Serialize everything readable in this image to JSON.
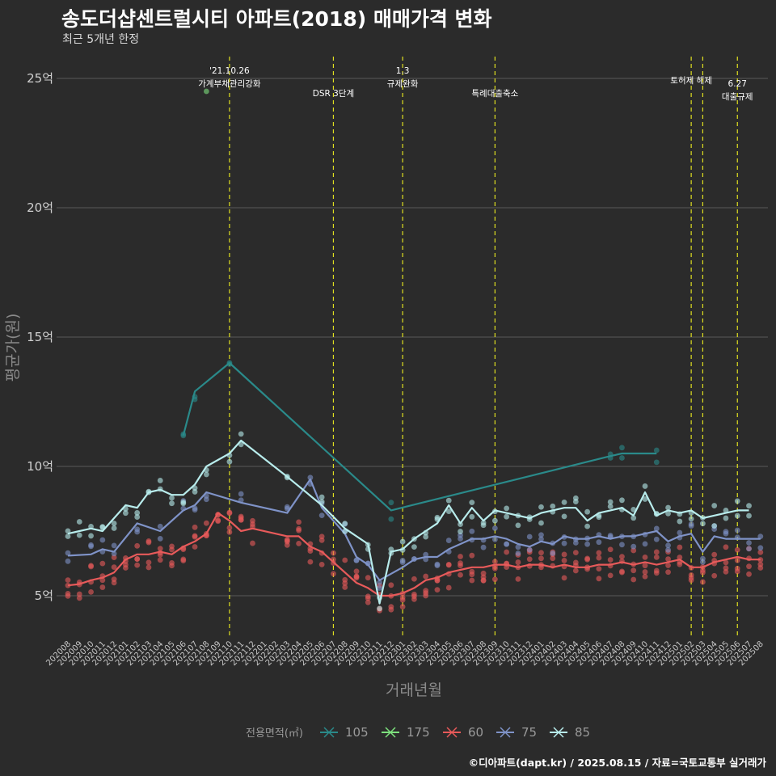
{
  "chart_data": {
    "type": "line",
    "title": "송도더샵센트럴시티 아파트(2018) 매매가격 변화",
    "subtitle": "최근 5개년 한정",
    "xlabel": "거래년월",
    "ylabel": "평균가(원)",
    "ylim": [
      3,
      26
    ],
    "y_ticks": [
      5,
      10,
      15,
      20,
      25
    ],
    "y_tick_labels": [
      "5억",
      "10억",
      "15억",
      "20억",
      "25억"
    ],
    "grid": true,
    "x_categories": [
      "202008",
      "202009",
      "202010",
      "202011",
      "202012",
      "202101",
      "202102",
      "202103",
      "202104",
      "202105",
      "202106",
      "202107",
      "202108",
      "202109",
      "202110",
      "202111",
      "202112",
      "202201",
      "202202",
      "202203",
      "202204",
      "202205",
      "202206",
      "202207",
      "202208",
      "202209",
      "202210",
      "202211",
      "202212",
      "202301",
      "202302",
      "202303",
      "202304",
      "202305",
      "202306",
      "202307",
      "202308",
      "202309",
      "202310",
      "202311",
      "202312",
      "202401",
      "202402",
      "202403",
      "202404",
      "202405",
      "202406",
      "202407",
      "202408",
      "202409",
      "202410",
      "202411",
      "202412",
      "202501",
      "202502",
      "202503",
      "202504",
      "202505",
      "202506",
      "202507",
      "202508"
    ],
    "events": [
      {
        "x": "202110",
        "label": "'21.10.26\n가계부채관리강화"
      },
      {
        "x": "202207",
        "label": "DSR 3단계"
      },
      {
        "x": "202301",
        "label": "1.3\n규제완화"
      },
      {
        "x": "202309",
        "label": "특례대출축소"
      },
      {
        "x": "202502",
        "label": "토허제 해제"
      },
      {
        "x": "202503",
        "label": ""
      },
      {
        "x": "202506",
        "label": "6.27\n대출규제"
      }
    ],
    "legend": {
      "title": "전용면적(㎡)",
      "position": "bottom"
    },
    "series": [
      {
        "name": "105",
        "color": "#2a8a8a",
        "points": [
          [
            "202106",
            11.2
          ],
          [
            "202107",
            12.9
          ],
          [
            "202110",
            14.0
          ],
          [
            "202212",
            8.3
          ],
          [
            "202407",
            10.4
          ],
          [
            "202408",
            10.5
          ],
          [
            "202411",
            10.5
          ]
        ]
      },
      {
        "name": "175",
        "color": "#7de07d",
        "points": [
          [
            "202108",
            24.5
          ]
        ]
      },
      {
        "name": "60",
        "color": "#e85a5a",
        "points": [
          [
            "202008",
            5.4
          ],
          [
            "202009",
            5.45
          ],
          [
            "202010",
            5.6
          ],
          [
            "202011",
            5.7
          ],
          [
            "202012",
            5.9
          ],
          [
            "202101",
            6.4
          ],
          [
            "202102",
            6.6
          ],
          [
            "202103",
            6.6
          ],
          [
            "202104",
            6.7
          ],
          [
            "202105",
            6.6
          ],
          [
            "202106",
            6.9
          ],
          [
            "202107",
            7.1
          ],
          [
            "202108",
            7.4
          ],
          [
            "202109",
            8.2
          ],
          [
            "202110",
            7.9
          ],
          [
            "202111",
            7.5
          ],
          [
            "202112",
            7.6
          ],
          [
            "202203",
            7.3
          ],
          [
            "202204",
            7.3
          ],
          [
            "202205",
            6.9
          ],
          [
            "202206",
            6.7
          ],
          [
            "202207",
            6.3
          ],
          [
            "202208",
            5.9
          ],
          [
            "202209",
            5.5
          ],
          [
            "202210",
            5.3
          ],
          [
            "202211",
            5.0
          ],
          [
            "202212",
            5.0
          ],
          [
            "202301",
            5.1
          ],
          [
            "202302",
            5.3
          ],
          [
            "202303",
            5.6
          ],
          [
            "202304",
            5.7
          ],
          [
            "202305",
            5.9
          ],
          [
            "202306",
            6.0
          ],
          [
            "202307",
            6.1
          ],
          [
            "202308",
            6.1
          ],
          [
            "202309",
            6.2
          ],
          [
            "202310",
            6.2
          ],
          [
            "202311",
            6.1
          ],
          [
            "202312",
            6.2
          ],
          [
            "202401",
            6.2
          ],
          [
            "202402",
            6.1
          ],
          [
            "202403",
            6.2
          ],
          [
            "202404",
            6.1
          ],
          [
            "202405",
            6.1
          ],
          [
            "202406",
            6.2
          ],
          [
            "202407",
            6.2
          ],
          [
            "202408",
            6.3
          ],
          [
            "202409",
            6.2
          ],
          [
            "202410",
            6.3
          ],
          [
            "202411",
            6.2
          ],
          [
            "202412",
            6.3
          ],
          [
            "202501",
            6.4
          ],
          [
            "202502",
            6.1
          ],
          [
            "202503",
            6.1
          ],
          [
            "202504",
            6.3
          ],
          [
            "202505",
            6.4
          ],
          [
            "202506",
            6.5
          ],
          [
            "202507",
            6.4
          ],
          [
            "202508",
            6.4
          ]
        ]
      },
      {
        "name": "75",
        "color": "#7f93c8",
        "points": [
          [
            "202008",
            6.55
          ],
          [
            "202010",
            6.6
          ],
          [
            "202011",
            6.8
          ],
          [
            "202012",
            6.7
          ],
          [
            "202102",
            7.8
          ],
          [
            "202104",
            7.5
          ],
          [
            "202106",
            8.3
          ],
          [
            "202107",
            8.5
          ],
          [
            "202108",
            9.0
          ],
          [
            "202111",
            8.6
          ],
          [
            "202203",
            8.2
          ],
          [
            "202205",
            9.5
          ],
          [
            "202206",
            8.4
          ],
          [
            "202208",
            7.4
          ],
          [
            "202209",
            6.5
          ],
          [
            "202210",
            6.2
          ],
          [
            "202211",
            5.6
          ],
          [
            "202301",
            6.1
          ],
          [
            "202302",
            6.4
          ],
          [
            "202303",
            6.5
          ],
          [
            "202304",
            6.5
          ],
          [
            "202305",
            6.8
          ],
          [
            "202306",
            7.0
          ],
          [
            "202307",
            7.2
          ],
          [
            "202308",
            7.2
          ],
          [
            "202309",
            7.3
          ],
          [
            "202310",
            7.2
          ],
          [
            "202311",
            7.0
          ],
          [
            "202312",
            6.9
          ],
          [
            "202401",
            7.1
          ],
          [
            "202402",
            7.0
          ],
          [
            "202403",
            7.3
          ],
          [
            "202404",
            7.2
          ],
          [
            "202405",
            7.2
          ],
          [
            "202406",
            7.3
          ],
          [
            "202407",
            7.2
          ],
          [
            "202408",
            7.3
          ],
          [
            "202409",
            7.3
          ],
          [
            "202410",
            7.4
          ],
          [
            "202411",
            7.5
          ],
          [
            "202412",
            7.1
          ],
          [
            "202501",
            7.3
          ],
          [
            "202502",
            7.4
          ],
          [
            "202503",
            6.7
          ],
          [
            "202504",
            7.3
          ],
          [
            "202505",
            7.2
          ],
          [
            "202506",
            7.2
          ],
          [
            "202507",
            7.2
          ],
          [
            "202508",
            7.2
          ]
        ]
      },
      {
        "name": "85",
        "color": "#b8ecec",
        "points": [
          [
            "202008",
            7.4
          ],
          [
            "202009",
            7.5
          ],
          [
            "202010",
            7.6
          ],
          [
            "202011",
            7.5
          ],
          [
            "202012",
            8.0
          ],
          [
            "202101",
            8.5
          ],
          [
            "202102",
            8.4
          ],
          [
            "202103",
            9.0
          ],
          [
            "202104",
            9.1
          ],
          [
            "202105",
            8.9
          ],
          [
            "202106",
            8.9
          ],
          [
            "202107",
            9.3
          ],
          [
            "202108",
            10.0
          ],
          [
            "202110",
            10.5
          ],
          [
            "202111",
            11.0
          ],
          [
            "202203",
            9.6
          ],
          [
            "202206",
            8.5
          ],
          [
            "202208",
            7.6
          ],
          [
            "202210",
            7.0
          ],
          [
            "202211",
            4.7
          ],
          [
            "202212",
            6.7
          ],
          [
            "202301",
            6.8
          ],
          [
            "202302",
            7.2
          ],
          [
            "202303",
            7.5
          ],
          [
            "202304",
            7.8
          ],
          [
            "202305",
            8.5
          ],
          [
            "202306",
            7.8
          ],
          [
            "202307",
            8.4
          ],
          [
            "202308",
            7.9
          ],
          [
            "202309",
            8.3
          ],
          [
            "202310",
            8.2
          ],
          [
            "202311",
            8.1
          ],
          [
            "202312",
            8.0
          ],
          [
            "202401",
            8.2
          ],
          [
            "202402",
            8.3
          ],
          [
            "202403",
            8.4
          ],
          [
            "202404",
            8.4
          ],
          [
            "202405",
            7.9
          ],
          [
            "202406",
            8.2
          ],
          [
            "202407",
            8.3
          ],
          [
            "202408",
            8.4
          ],
          [
            "202409",
            8.1
          ],
          [
            "202410",
            9.0
          ],
          [
            "202411",
            8.1
          ],
          [
            "202412",
            8.3
          ],
          [
            "202501",
            8.2
          ],
          [
            "202502",
            8.3
          ],
          [
            "202503",
            8.0
          ],
          [
            "202504",
            8.1
          ],
          [
            "202505",
            8.2
          ],
          [
            "202506",
            8.3
          ],
          [
            "202507",
            8.3
          ]
        ]
      }
    ]
  },
  "caption": "©디아파트(dapt.kr) / 2025.08.15 / 자료=국토교통부 실거래가"
}
